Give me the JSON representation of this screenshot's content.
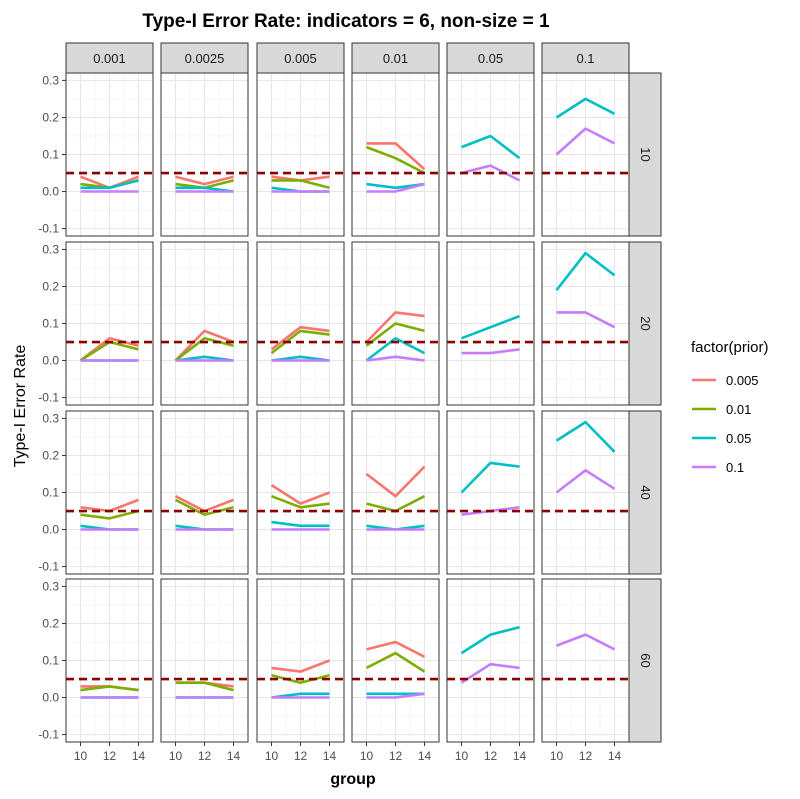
{
  "chart_data": {
    "type": "line",
    "title": "Type-I Error Rate: indicators = 6, non-size = 1",
    "xlabel": "group",
    "ylabel": "Type-I Error Rate",
    "x_ticks": [
      "10",
      "12",
      "14"
    ],
    "y_ticks": [
      "-0.1",
      "0.0",
      "0.1",
      "0.2",
      "0.3"
    ],
    "ylim": [
      -0.12,
      0.32
    ],
    "xlim": [
      9,
      15
    ],
    "grid": true,
    "legend": {
      "title": "factor(prior)",
      "position": "right",
      "entries": [
        "0.005",
        "0.01",
        "0.05",
        "0.1"
      ]
    },
    "colors": {
      "0.005": "#F8766D",
      "0.01": "#7CAE00",
      "0.05": "#00BFC4",
      "0.1": "#C77CFF",
      "reference": "#8B0000"
    },
    "reference_line": 0.05,
    "col_facets": [
      "0.001",
      "0.0025",
      "0.005",
      "0.01",
      "0.05",
      "0.1"
    ],
    "row_facets": [
      "10",
      "20",
      "40",
      "60"
    ],
    "x": [
      10,
      12,
      14
    ],
    "panels": [
      [
        {
          "0.005": [
            0.04,
            0.01,
            0.04
          ],
          "0.01": [
            0.02,
            0.01,
            0.03
          ],
          "0.05": [
            0.01,
            0.01,
            0.03
          ],
          "0.1": [
            0.0,
            0.0,
            0.0
          ]
        },
        {
          "0.005": [
            0.04,
            0.02,
            0.04
          ],
          "0.01": [
            0.02,
            0.01,
            0.03
          ],
          "0.05": [
            0.01,
            0.01,
            0.0
          ],
          "0.1": [
            0.0,
            0.0,
            0.0
          ]
        },
        {
          "0.005": [
            0.04,
            0.03,
            0.04
          ],
          "0.01": [
            0.03,
            0.03,
            0.01
          ],
          "0.05": [
            0.01,
            0.0,
            0.0
          ],
          "0.1": [
            0.0,
            0.0,
            0.0
          ]
        },
        {
          "0.005": [
            0.13,
            0.13,
            0.06
          ],
          "0.01": [
            0.12,
            0.09,
            0.05
          ],
          "0.05": [
            0.02,
            0.01,
            0.02
          ],
          "0.1": [
            0.0,
            0.0,
            0.02
          ]
        },
        {
          "0.05": [
            0.12,
            0.15,
            0.09
          ],
          "0.1": [
            0.05,
            0.07,
            0.03
          ]
        },
        {
          "0.05": [
            0.2,
            0.25,
            0.21
          ],
          "0.1": [
            0.1,
            0.17,
            0.13
          ]
        }
      ],
      [
        {
          "0.005": [
            0.0,
            0.06,
            0.04
          ],
          "0.01": [
            0.0,
            0.05,
            0.03
          ],
          "0.05": [
            0.0,
            0.0,
            0.0
          ],
          "0.1": [
            0.0,
            0.0,
            0.0
          ]
        },
        {
          "0.005": [
            0.0,
            0.08,
            0.05
          ],
          "0.01": [
            0.0,
            0.06,
            0.04
          ],
          "0.05": [
            0.0,
            0.01,
            0.0
          ],
          "0.1": [
            0.0,
            0.0,
            0.0
          ]
        },
        {
          "0.005": [
            0.03,
            0.09,
            0.08
          ],
          "0.01": [
            0.02,
            0.08,
            0.07
          ],
          "0.05": [
            0.0,
            0.01,
            0.0
          ],
          "0.1": [
            0.0,
            0.0,
            0.0
          ]
        },
        {
          "0.005": [
            0.05,
            0.13,
            0.12
          ],
          "0.01": [
            0.04,
            0.1,
            0.08
          ],
          "0.05": [
            0.0,
            0.06,
            0.02
          ],
          "0.1": [
            0.0,
            0.01,
            0.0
          ]
        },
        {
          "0.05": [
            0.06,
            0.09,
            0.12
          ],
          "0.1": [
            0.02,
            0.02,
            0.03
          ]
        },
        {
          "0.05": [
            0.19,
            0.29,
            0.23
          ],
          "0.1": [
            0.13,
            0.13,
            0.09
          ]
        }
      ],
      [
        {
          "0.005": [
            0.06,
            0.05,
            0.08
          ],
          "0.01": [
            0.04,
            0.03,
            0.05
          ],
          "0.05": [
            0.01,
            0.0,
            0.0
          ],
          "0.1": [
            0.0,
            0.0,
            0.0
          ]
        },
        {
          "0.005": [
            0.09,
            0.05,
            0.08
          ],
          "0.01": [
            0.08,
            0.04,
            0.06
          ],
          "0.05": [
            0.01,
            0.0,
            0.0
          ],
          "0.1": [
            0.0,
            0.0,
            0.0
          ]
        },
        {
          "0.005": [
            0.12,
            0.07,
            0.1
          ],
          "0.01": [
            0.09,
            0.06,
            0.07
          ],
          "0.05": [
            0.02,
            0.01,
            0.01
          ],
          "0.1": [
            0.0,
            0.0,
            0.0
          ]
        },
        {
          "0.005": [
            0.15,
            0.09,
            0.17
          ],
          "0.01": [
            0.07,
            0.05,
            0.09
          ],
          "0.05": [
            0.01,
            0.0,
            0.01
          ],
          "0.1": [
            0.0,
            0.0,
            0.0
          ]
        },
        {
          "0.05": [
            0.1,
            0.18,
            0.17
          ],
          "0.1": [
            0.04,
            0.05,
            0.06
          ]
        },
        {
          "0.05": [
            0.24,
            0.29,
            0.21
          ],
          "0.1": [
            0.1,
            0.16,
            0.11
          ]
        }
      ],
      [
        {
          "0.005": [
            0.03,
            0.03,
            0.02
          ],
          "0.01": [
            0.02,
            0.03,
            0.02
          ],
          "0.05": [
            0.0,
            0.0,
            0.0
          ],
          "0.1": [
            0.0,
            0.0,
            0.0
          ]
        },
        {
          "0.005": [
            0.04,
            0.04,
            0.03
          ],
          "0.01": [
            0.04,
            0.04,
            0.02
          ],
          "0.05": [
            0.0,
            0.0,
            0.0
          ],
          "0.1": [
            0.0,
            0.0,
            0.0
          ]
        },
        {
          "0.005": [
            0.08,
            0.07,
            0.1
          ],
          "0.01": [
            0.06,
            0.04,
            0.06
          ],
          "0.05": [
            0.0,
            0.01,
            0.01
          ],
          "0.1": [
            0.0,
            0.0,
            0.0
          ]
        },
        {
          "0.005": [
            0.13,
            0.15,
            0.11
          ],
          "0.01": [
            0.08,
            0.12,
            0.07
          ],
          "0.05": [
            0.01,
            0.01,
            0.01
          ],
          "0.1": [
            0.0,
            0.0,
            0.01
          ]
        },
        {
          "0.05": [
            0.12,
            0.17,
            0.19
          ],
          "0.1": [
            0.04,
            0.09,
            0.08
          ]
        },
        {
          "0.1": [
            0.14,
            0.17,
            0.13
          ]
        }
      ]
    ]
  }
}
